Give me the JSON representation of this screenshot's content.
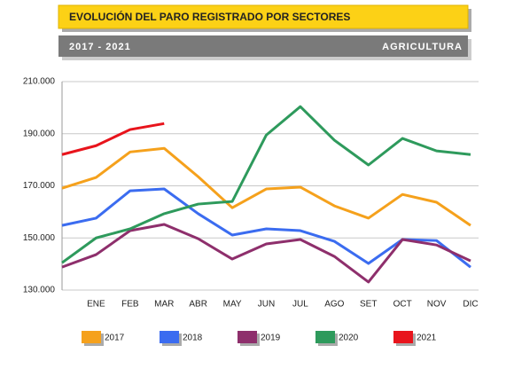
{
  "chart_data": {
    "type": "line",
    "title": "EVOLUCIÓN DEL PARO REGISTRADO POR SECTORES",
    "subtitle": "2017 - 2021",
    "sector": "AGRICULTURA",
    "categories": [
      null,
      "ENE",
      "FEB",
      "MAR",
      "ABR",
      "MAY",
      "JUN",
      "JUL",
      "AGO",
      "SET",
      "OCT",
      "NOV",
      "DIC"
    ],
    "ylim": [
      130000,
      210000
    ],
    "yticks": [
      {
        "value": 130000,
        "label": "130.000"
      },
      {
        "value": 150000,
        "label": "150.000"
      },
      {
        "value": 170000,
        "label": "170.000"
      },
      {
        "value": 190000,
        "label": "190.000"
      },
      {
        "value": 210000,
        "label": "210.000"
      }
    ],
    "grid": true,
    "series": [
      {
        "name": "2017",
        "color": "#f5a11c",
        "values": [
          169100,
          173200,
          183000,
          184400,
          173500,
          161600,
          168800,
          169500,
          162300,
          157600,
          166700,
          163700,
          154800
        ]
      },
      {
        "name": "2018",
        "color": "#3b6cf0",
        "values": [
          154800,
          157600,
          168100,
          168800,
          159300,
          151100,
          153500,
          152800,
          148700,
          140200,
          149400,
          149000,
          138800
        ]
      },
      {
        "name": "2019",
        "color": "#8e2f6c",
        "values": [
          138800,
          143600,
          152800,
          155200,
          149700,
          141900,
          147700,
          149400,
          142900,
          133100,
          149400,
          147300,
          141200
        ]
      },
      {
        "name": "2020",
        "color": "#2e9a5c",
        "values": [
          140500,
          150000,
          153500,
          159300,
          163000,
          164000,
          189500,
          200400,
          187500,
          178000,
          188200,
          183400,
          182000
        ]
      },
      {
        "name": "2021",
        "color": "#e8141c",
        "values": [
          182000,
          185400,
          191600,
          193900,
          null,
          null,
          null,
          null,
          null,
          null,
          null,
          null,
          null
        ]
      }
    ]
  }
}
